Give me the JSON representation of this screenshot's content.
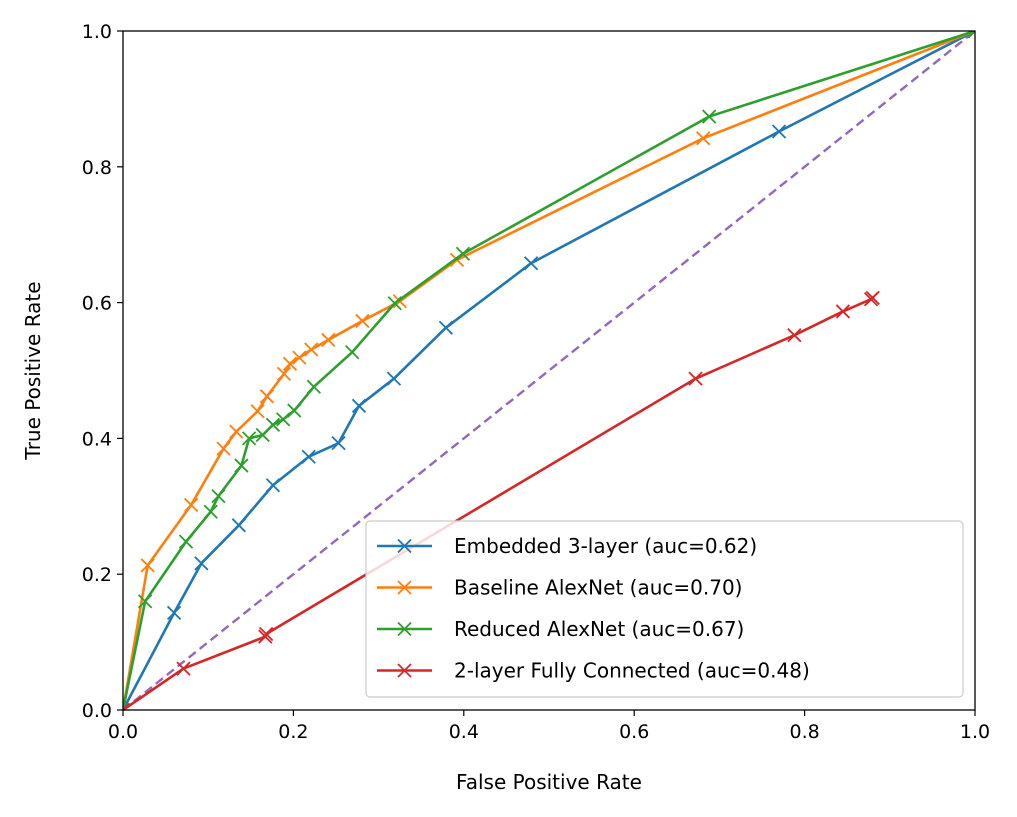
{
  "chart_data": {
    "type": "line",
    "title": "",
    "xlabel": "False Positive Rate",
    "ylabel": "True Positive Rate",
    "xlim": [
      0.0,
      1.0
    ],
    "ylim": [
      0.0,
      1.0
    ],
    "xticks": [
      "0.0",
      "0.2",
      "0.4",
      "0.6",
      "0.8",
      "1.0"
    ],
    "yticks": [
      "0.0",
      "0.2",
      "0.4",
      "0.6",
      "0.8",
      "1.0"
    ],
    "grid": false,
    "legend_position": "lower-right",
    "reference_line": {
      "x": [
        0.0,
        1.0
      ],
      "y": [
        0.0,
        1.0
      ],
      "style": "dashed",
      "color": "#9467bd"
    },
    "series": [
      {
        "name": "Embedded 3-layer (auc=0.62)",
        "color": "#1f77b4",
        "marker": "x",
        "x": [
          0.0,
          0.06,
          0.092,
          0.136,
          0.176,
          0.218,
          0.253,
          0.277,
          0.318,
          0.379,
          0.479,
          0.77,
          1.0
        ],
        "y": [
          0.0,
          0.143,
          0.216,
          0.272,
          0.331,
          0.373,
          0.393,
          0.448,
          0.488,
          0.563,
          0.658,
          0.852,
          1.0
        ]
      },
      {
        "name": "Baseline AlexNet (auc=0.70)",
        "color": "#ff7f0e",
        "marker": "x",
        "x": [
          0.0,
          0.029,
          0.08,
          0.118,
          0.133,
          0.158,
          0.169,
          0.189,
          0.196,
          0.207,
          0.221,
          0.241,
          0.281,
          0.325,
          0.392,
          0.681,
          1.0
        ],
        "y": [
          0.0,
          0.213,
          0.302,
          0.385,
          0.41,
          0.44,
          0.462,
          0.495,
          0.51,
          0.519,
          0.531,
          0.545,
          0.573,
          0.602,
          0.663,
          0.842,
          1.0
        ]
      },
      {
        "name": "Reduced AlexNet (auc=0.67)",
        "color": "#2ca02c",
        "marker": "x",
        "x": [
          0.0,
          0.026,
          0.074,
          0.103,
          0.112,
          0.139,
          0.148,
          0.164,
          0.176,
          0.188,
          0.201,
          0.224,
          0.269,
          0.319,
          0.399,
          0.688,
          1.0
        ],
        "y": [
          0.0,
          0.16,
          0.248,
          0.292,
          0.315,
          0.36,
          0.4,
          0.405,
          0.42,
          0.428,
          0.441,
          0.476,
          0.527,
          0.599,
          0.672,
          0.874,
          1.0
        ]
      },
      {
        "name": "2-layer Fully Connected (auc=0.48)",
        "color": "#d62728",
        "marker": "x",
        "x": [
          0.0,
          0.071,
          0.167,
          0.168,
          0.672,
          0.788,
          0.845,
          0.878,
          0.88
        ],
        "y": [
          0.0,
          0.061,
          0.108,
          0.112,
          0.488,
          0.552,
          0.587,
          0.605,
          0.607
        ]
      }
    ]
  }
}
